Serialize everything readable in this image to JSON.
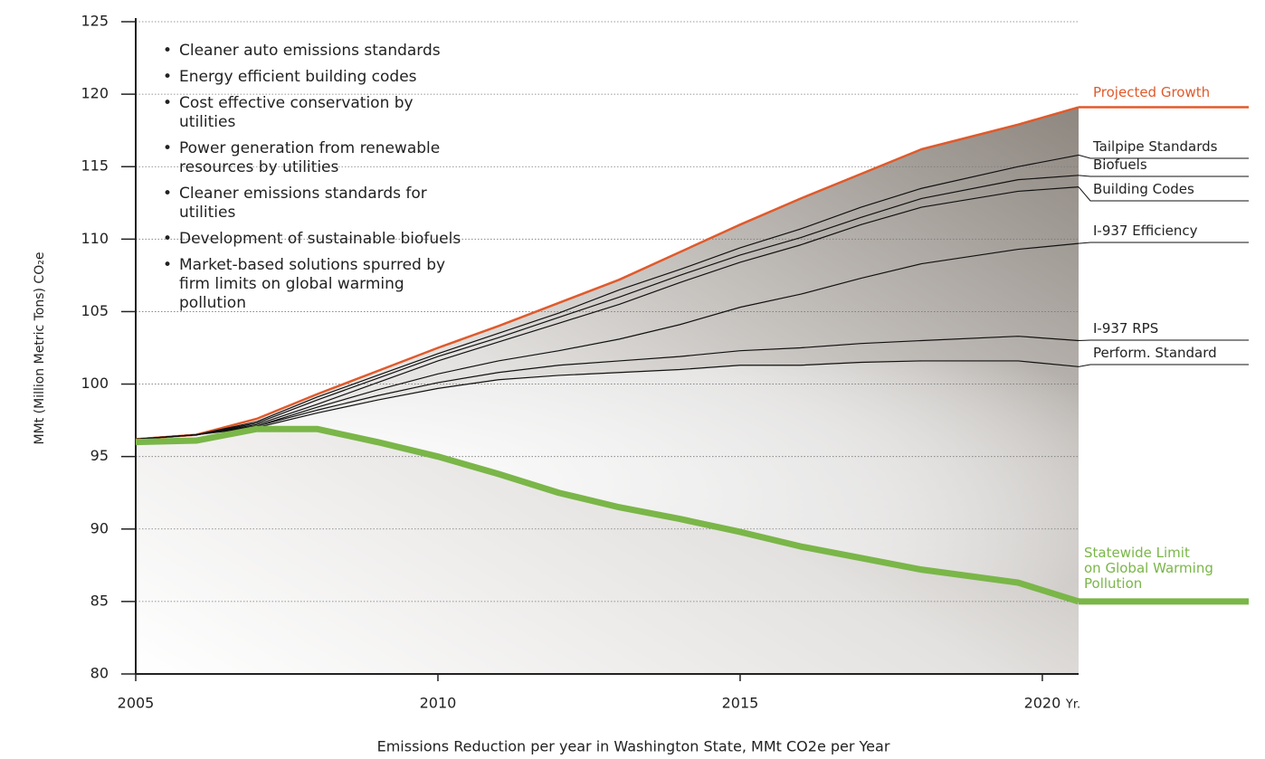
{
  "chart_data": {
    "type": "line",
    "y_label": "MMt (Million Metric Tons) CO₂e",
    "x_label": "Emissions Reduction per year in Washington State, MMt CO2e per Year",
    "x_unit": "Yr.",
    "notes": [
      "Cleaner auto emissions standards",
      "Energy efficient building codes",
      "Cost effective conservation by utilities",
      "Power generation from renewable resources by utilities",
      "Cleaner emissions standards for utilities",
      "Development of sustainable biofuels",
      "Market-based solutions spurred by firm limits on global warming pollution"
    ],
    "x": [
      2005,
      2006,
      2007,
      2008,
      2009,
      2010,
      2011,
      2012,
      2013,
      2014,
      2015,
      2016,
      2017,
      2018,
      2019.6,
      2020.6
    ],
    "series": [
      {
        "name": "Projected Growth",
        "color": "#e05a2b",
        "values": [
          96.2,
          96.5,
          97.6,
          99.3,
          100.9,
          102.5,
          104,
          105.6,
          107.2,
          109.1,
          111,
          112.8,
          114.5,
          116.2,
          117.9,
          119.1
        ]
      },
      {
        "name": "Tailpipe Standards",
        "color": "#111111",
        "values": [
          96.2,
          96.5,
          97.4,
          99.1,
          100.6,
          102.1,
          103.5,
          104.9,
          106.5,
          107.9,
          109.4,
          110.7,
          112.2,
          113.5,
          115,
          115.8
        ]
      },
      {
        "name": "Biofuels",
        "color": "#111111",
        "values": [
          96.2,
          96.5,
          97.3,
          98.9,
          100.4,
          101.9,
          103.2,
          104.6,
          106,
          107.5,
          108.9,
          110.1,
          111.5,
          112.8,
          114.1,
          114.4
        ]
      },
      {
        "name": "Building Codes",
        "color": "#111111",
        "values": [
          96.2,
          96.5,
          97.2,
          98.6,
          100.1,
          101.6,
          102.9,
          104.2,
          105.5,
          107,
          108.4,
          109.6,
          111,
          112.2,
          113.3,
          113.6
        ]
      },
      {
        "name": "I-937 Efficiency",
        "color": "#111111",
        "values": [
          96.2,
          96.5,
          97.1,
          98.4,
          99.6,
          100.7,
          101.6,
          102.3,
          103.1,
          104.1,
          105.3,
          106.2,
          107.3,
          108.3,
          109.3,
          109.7
        ]
      },
      {
        "name": "I-937 RPS",
        "color": "#111111",
        "values": [
          96.2,
          96.5,
          97.1,
          98.2,
          99.2,
          100.1,
          100.8,
          101.3,
          101.6,
          101.9,
          102.3,
          102.5,
          102.8,
          103,
          103.3,
          103
        ]
      },
      {
        "name": "Perform. Standard",
        "color": "#111111",
        "values": [
          96.2,
          96.5,
          97,
          98,
          98.9,
          99.7,
          100.3,
          100.6,
          100.8,
          101,
          101.3,
          101.3,
          101.5,
          101.6,
          101.6,
          101.2
        ]
      },
      {
        "name": "Statewide Limit\non Global Warming\nPollution",
        "color": "#7ab648",
        "values": [
          96,
          96.1,
          96.9,
          96.9,
          96,
          95,
          93.8,
          92.5,
          91.5,
          90.7,
          89.8,
          88.8,
          88,
          87.2,
          86.3,
          85
        ]
      }
    ],
    "xlim": [
      2005,
      2020.6
    ],
    "xticks": [
      2005,
      2010,
      2015,
      2020
    ],
    "ylim": [
      80,
      125
    ],
    "yticks": [
      80,
      85,
      90,
      95,
      100,
      105,
      110,
      115,
      120,
      125
    ],
    "grid": true
  }
}
